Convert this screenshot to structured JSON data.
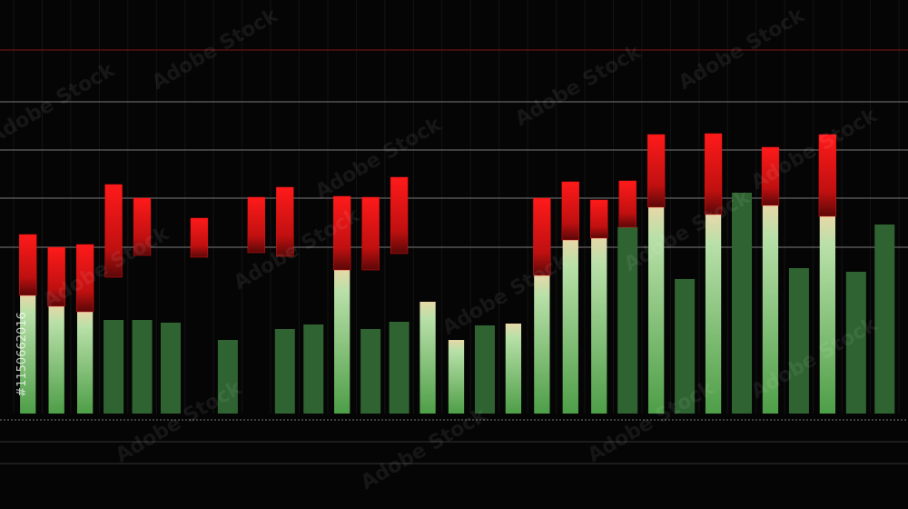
{
  "chart_data": {
    "type": "bar",
    "ylim": [
      0,
      113.75
    ],
    "gridlines": [
      100,
      85.75,
      72.5,
      59.25,
      45.75
    ],
    "gridline_colors": [
      "#5a1010",
      "#555555",
      "#555555",
      "#555555",
      "#555555"
    ],
    "series": [
      {
        "color": "#6fbf6a",
        "values": [
          32.5,
          29.5,
          28,
          25.75,
          25.75,
          25,
          null,
          20.25,
          null,
          23.25,
          24.5,
          39.5,
          23.25,
          25.25,
          30.75,
          20.25,
          24.25,
          24.75,
          38,
          47.75,
          48.25,
          51.25,
          56.75,
          37,
          54.75,
          60.75,
          57.25,
          40,
          54.25,
          39,
          52
        ],
        "colors": [
          "#8fd08a",
          "#8fd08a",
          "#8fd08a",
          "#2f6331",
          "#2f6331",
          "#2f6331",
          null,
          "#2f6331",
          null,
          "#2f6331",
          "#2f6331",
          "#8fd08a",
          "#2f6331",
          "#2f6331",
          "#8fd08a",
          "#8fd08a",
          "#2f6331",
          "#8fd08a",
          "#8fd08a",
          "#8fd08a",
          "#8fd08a",
          "#2f6331",
          "#8fd08a",
          "#2f6331",
          "#8fd08a",
          "#2f6331",
          "#8fd08a",
          "#2f6331",
          "#8fd08a",
          "#2f6331",
          "#2f6331"
        ]
      },
      {
        "color": "#e01313",
        "low": [
          32.5,
          29.5,
          28,
          37.5,
          43.5,
          null,
          43,
          null,
          44.25,
          43.25,
          null,
          39.5,
          39.5,
          44,
          null,
          null,
          null,
          null,
          38,
          47.75,
          48.25,
          51.25,
          56.75,
          null,
          54.75,
          null,
          57.25,
          null,
          54.25,
          null,
          null
        ],
        "high": [
          49.25,
          45.75,
          46.5,
          63,
          59.25,
          null,
          53.75,
          null,
          59.5,
          62.25,
          null,
          59.75,
          59.5,
          65,
          null,
          null,
          null,
          null,
          59.25,
          63.75,
          58.75,
          64,
          76.75,
          null,
          77,
          null,
          73.25,
          null,
          76.75,
          null,
          null
        ]
      }
    ],
    "watermark": {
      "text": "Adobe Stock",
      "id": "#1150662016"
    }
  }
}
